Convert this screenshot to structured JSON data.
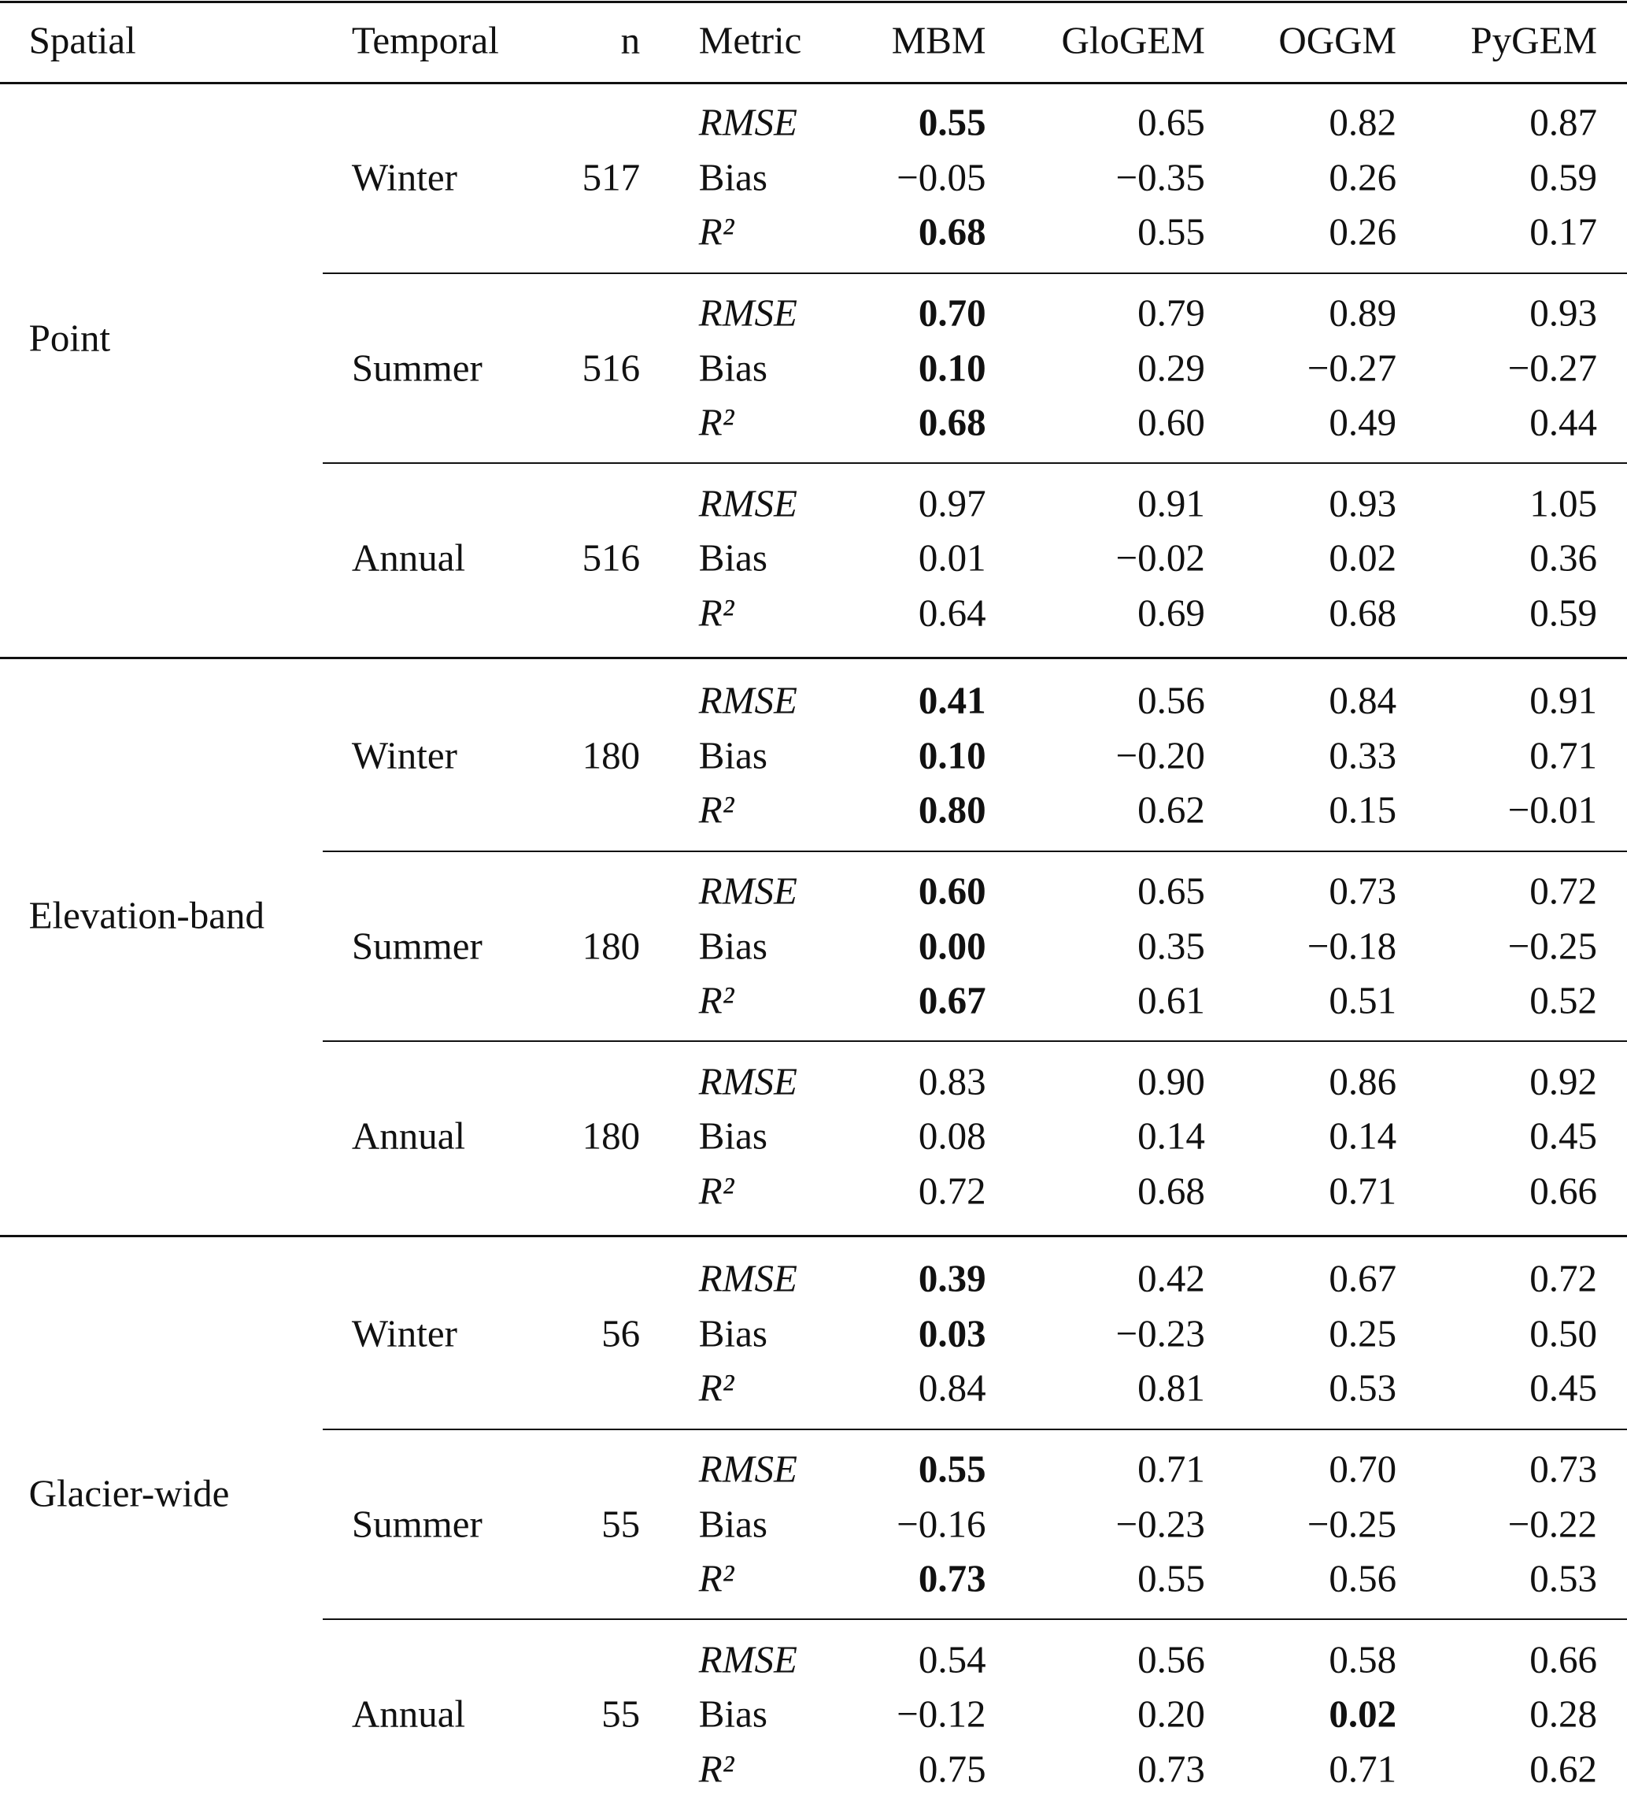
{
  "table": {
    "header": [
      "Spatial",
      "Temporal",
      "n",
      "Metric",
      "MBM",
      "GloGEM",
      "OGGM",
      "PyGEM"
    ],
    "groups": [
      {
        "spatial": "Point",
        "blocks": [
          {
            "temporal": "Winter",
            "n": 517,
            "rows": [
              {
                "metric": "RMSE",
                "values": [
                  "0.55",
                  "0.65",
                  "0.82",
                  "0.87"
                ],
                "bold": [
                  true,
                  false,
                  false,
                  false
                ]
              },
              {
                "metric": "Bias",
                "values": [
                  "−0.05",
                  "−0.35",
                  "0.26",
                  "0.59"
                ],
                "bold": [
                  false,
                  false,
                  false,
                  false
                ]
              },
              {
                "metric": "R²",
                "values": [
                  "0.68",
                  "0.55",
                  "0.26",
                  "0.17"
                ],
                "bold": [
                  true,
                  false,
                  false,
                  false
                ]
              }
            ]
          },
          {
            "temporal": "Summer",
            "n": 516,
            "rows": [
              {
                "metric": "RMSE",
                "values": [
                  "0.70",
                  "0.79",
                  "0.89",
                  "0.93"
                ],
                "bold": [
                  true,
                  false,
                  false,
                  false
                ]
              },
              {
                "metric": "Bias",
                "values": [
                  "0.10",
                  "0.29",
                  "−0.27",
                  "−0.27"
                ],
                "bold": [
                  true,
                  false,
                  false,
                  false
                ]
              },
              {
                "metric": "R²",
                "values": [
                  "0.68",
                  "0.60",
                  "0.49",
                  "0.44"
                ],
                "bold": [
                  true,
                  false,
                  false,
                  false
                ]
              }
            ]
          },
          {
            "temporal": "Annual",
            "n": 516,
            "rows": [
              {
                "metric": "RMSE",
                "values": [
                  "0.97",
                  "0.91",
                  "0.93",
                  "1.05"
                ],
                "bold": [
                  false,
                  false,
                  false,
                  false
                ]
              },
              {
                "metric": "Bias",
                "values": [
                  "0.01",
                  "−0.02",
                  "0.02",
                  "0.36"
                ],
                "bold": [
                  false,
                  false,
                  false,
                  false
                ]
              },
              {
                "metric": "R²",
                "values": [
                  "0.64",
                  "0.69",
                  "0.68",
                  "0.59"
                ],
                "bold": [
                  false,
                  false,
                  false,
                  false
                ]
              }
            ]
          }
        ]
      },
      {
        "spatial": "Elevation-band",
        "blocks": [
          {
            "temporal": "Winter",
            "n": 180,
            "rows": [
              {
                "metric": "RMSE",
                "values": [
                  "0.41",
                  "0.56",
                  "0.84",
                  "0.91"
                ],
                "bold": [
                  true,
                  false,
                  false,
                  false
                ]
              },
              {
                "metric": "Bias",
                "values": [
                  "0.10",
                  "−0.20",
                  "0.33",
                  "0.71"
                ],
                "bold": [
                  true,
                  false,
                  false,
                  false
                ]
              },
              {
                "metric": "R²",
                "values": [
                  "0.80",
                  "0.62",
                  "0.15",
                  "−0.01"
                ],
                "bold": [
                  true,
                  false,
                  false,
                  false
                ]
              }
            ]
          },
          {
            "temporal": "Summer",
            "n": 180,
            "rows": [
              {
                "metric": "RMSE",
                "values": [
                  "0.60",
                  "0.65",
                  "0.73",
                  "0.72"
                ],
                "bold": [
                  true,
                  false,
                  false,
                  false
                ]
              },
              {
                "metric": "Bias",
                "values": [
                  "0.00",
                  "0.35",
                  "−0.18",
                  "−0.25"
                ],
                "bold": [
                  true,
                  false,
                  false,
                  false
                ]
              },
              {
                "metric": "R²",
                "values": [
                  "0.67",
                  "0.61",
                  "0.51",
                  "0.52"
                ],
                "bold": [
                  true,
                  false,
                  false,
                  false
                ]
              }
            ]
          },
          {
            "temporal": "Annual",
            "n": 180,
            "rows": [
              {
                "metric": "RMSE",
                "values": [
                  "0.83",
                  "0.90",
                  "0.86",
                  "0.92"
                ],
                "bold": [
                  false,
                  false,
                  false,
                  false
                ]
              },
              {
                "metric": "Bias",
                "values": [
                  "0.08",
                  "0.14",
                  "0.14",
                  "0.45"
                ],
                "bold": [
                  false,
                  false,
                  false,
                  false
                ]
              },
              {
                "metric": "R²",
                "values": [
                  "0.72",
                  "0.68",
                  "0.71",
                  "0.66"
                ],
                "bold": [
                  false,
                  false,
                  false,
                  false
                ]
              }
            ]
          }
        ]
      },
      {
        "spatial": "Glacier-wide",
        "blocks": [
          {
            "temporal": "Winter",
            "n": 56,
            "rows": [
              {
                "metric": "RMSE",
                "values": [
                  "0.39",
                  "0.42",
                  "0.67",
                  "0.72"
                ],
                "bold": [
                  true,
                  false,
                  false,
                  false
                ]
              },
              {
                "metric": "Bias",
                "values": [
                  "0.03",
                  "−0.23",
                  "0.25",
                  "0.50"
                ],
                "bold": [
                  true,
                  false,
                  false,
                  false
                ]
              },
              {
                "metric": "R²",
                "values": [
                  "0.84",
                  "0.81",
                  "0.53",
                  "0.45"
                ],
                "bold": [
                  false,
                  false,
                  false,
                  false
                ]
              }
            ]
          },
          {
            "temporal": "Summer",
            "n": 55,
            "rows": [
              {
                "metric": "RMSE",
                "values": [
                  "0.55",
                  "0.71",
                  "0.70",
                  "0.73"
                ],
                "bold": [
                  true,
                  false,
                  false,
                  false
                ]
              },
              {
                "metric": "Bias",
                "values": [
                  "−0.16",
                  "−0.23",
                  "−0.25",
                  "−0.22"
                ],
                "bold": [
                  false,
                  false,
                  false,
                  false
                ]
              },
              {
                "metric": "R²",
                "values": [
                  "0.73",
                  "0.55",
                  "0.56",
                  "0.53"
                ],
                "bold": [
                  true,
                  false,
                  false,
                  false
                ]
              }
            ]
          },
          {
            "temporal": "Annual",
            "n": 55,
            "rows": [
              {
                "metric": "RMSE",
                "values": [
                  "0.54",
                  "0.56",
                  "0.58",
                  "0.66"
                ],
                "bold": [
                  false,
                  false,
                  false,
                  false
                ]
              },
              {
                "metric": "Bias",
                "values": [
                  "−0.12",
                  "0.20",
                  "0.02",
                  "0.28"
                ],
                "bold": [
                  false,
                  false,
                  true,
                  false
                ]
              },
              {
                "metric": "R²",
                "values": [
                  "0.75",
                  "0.73",
                  "0.71",
                  "0.62"
                ],
                "bold": [
                  false,
                  false,
                  false,
                  false
                ]
              }
            ]
          }
        ]
      }
    ]
  }
}
